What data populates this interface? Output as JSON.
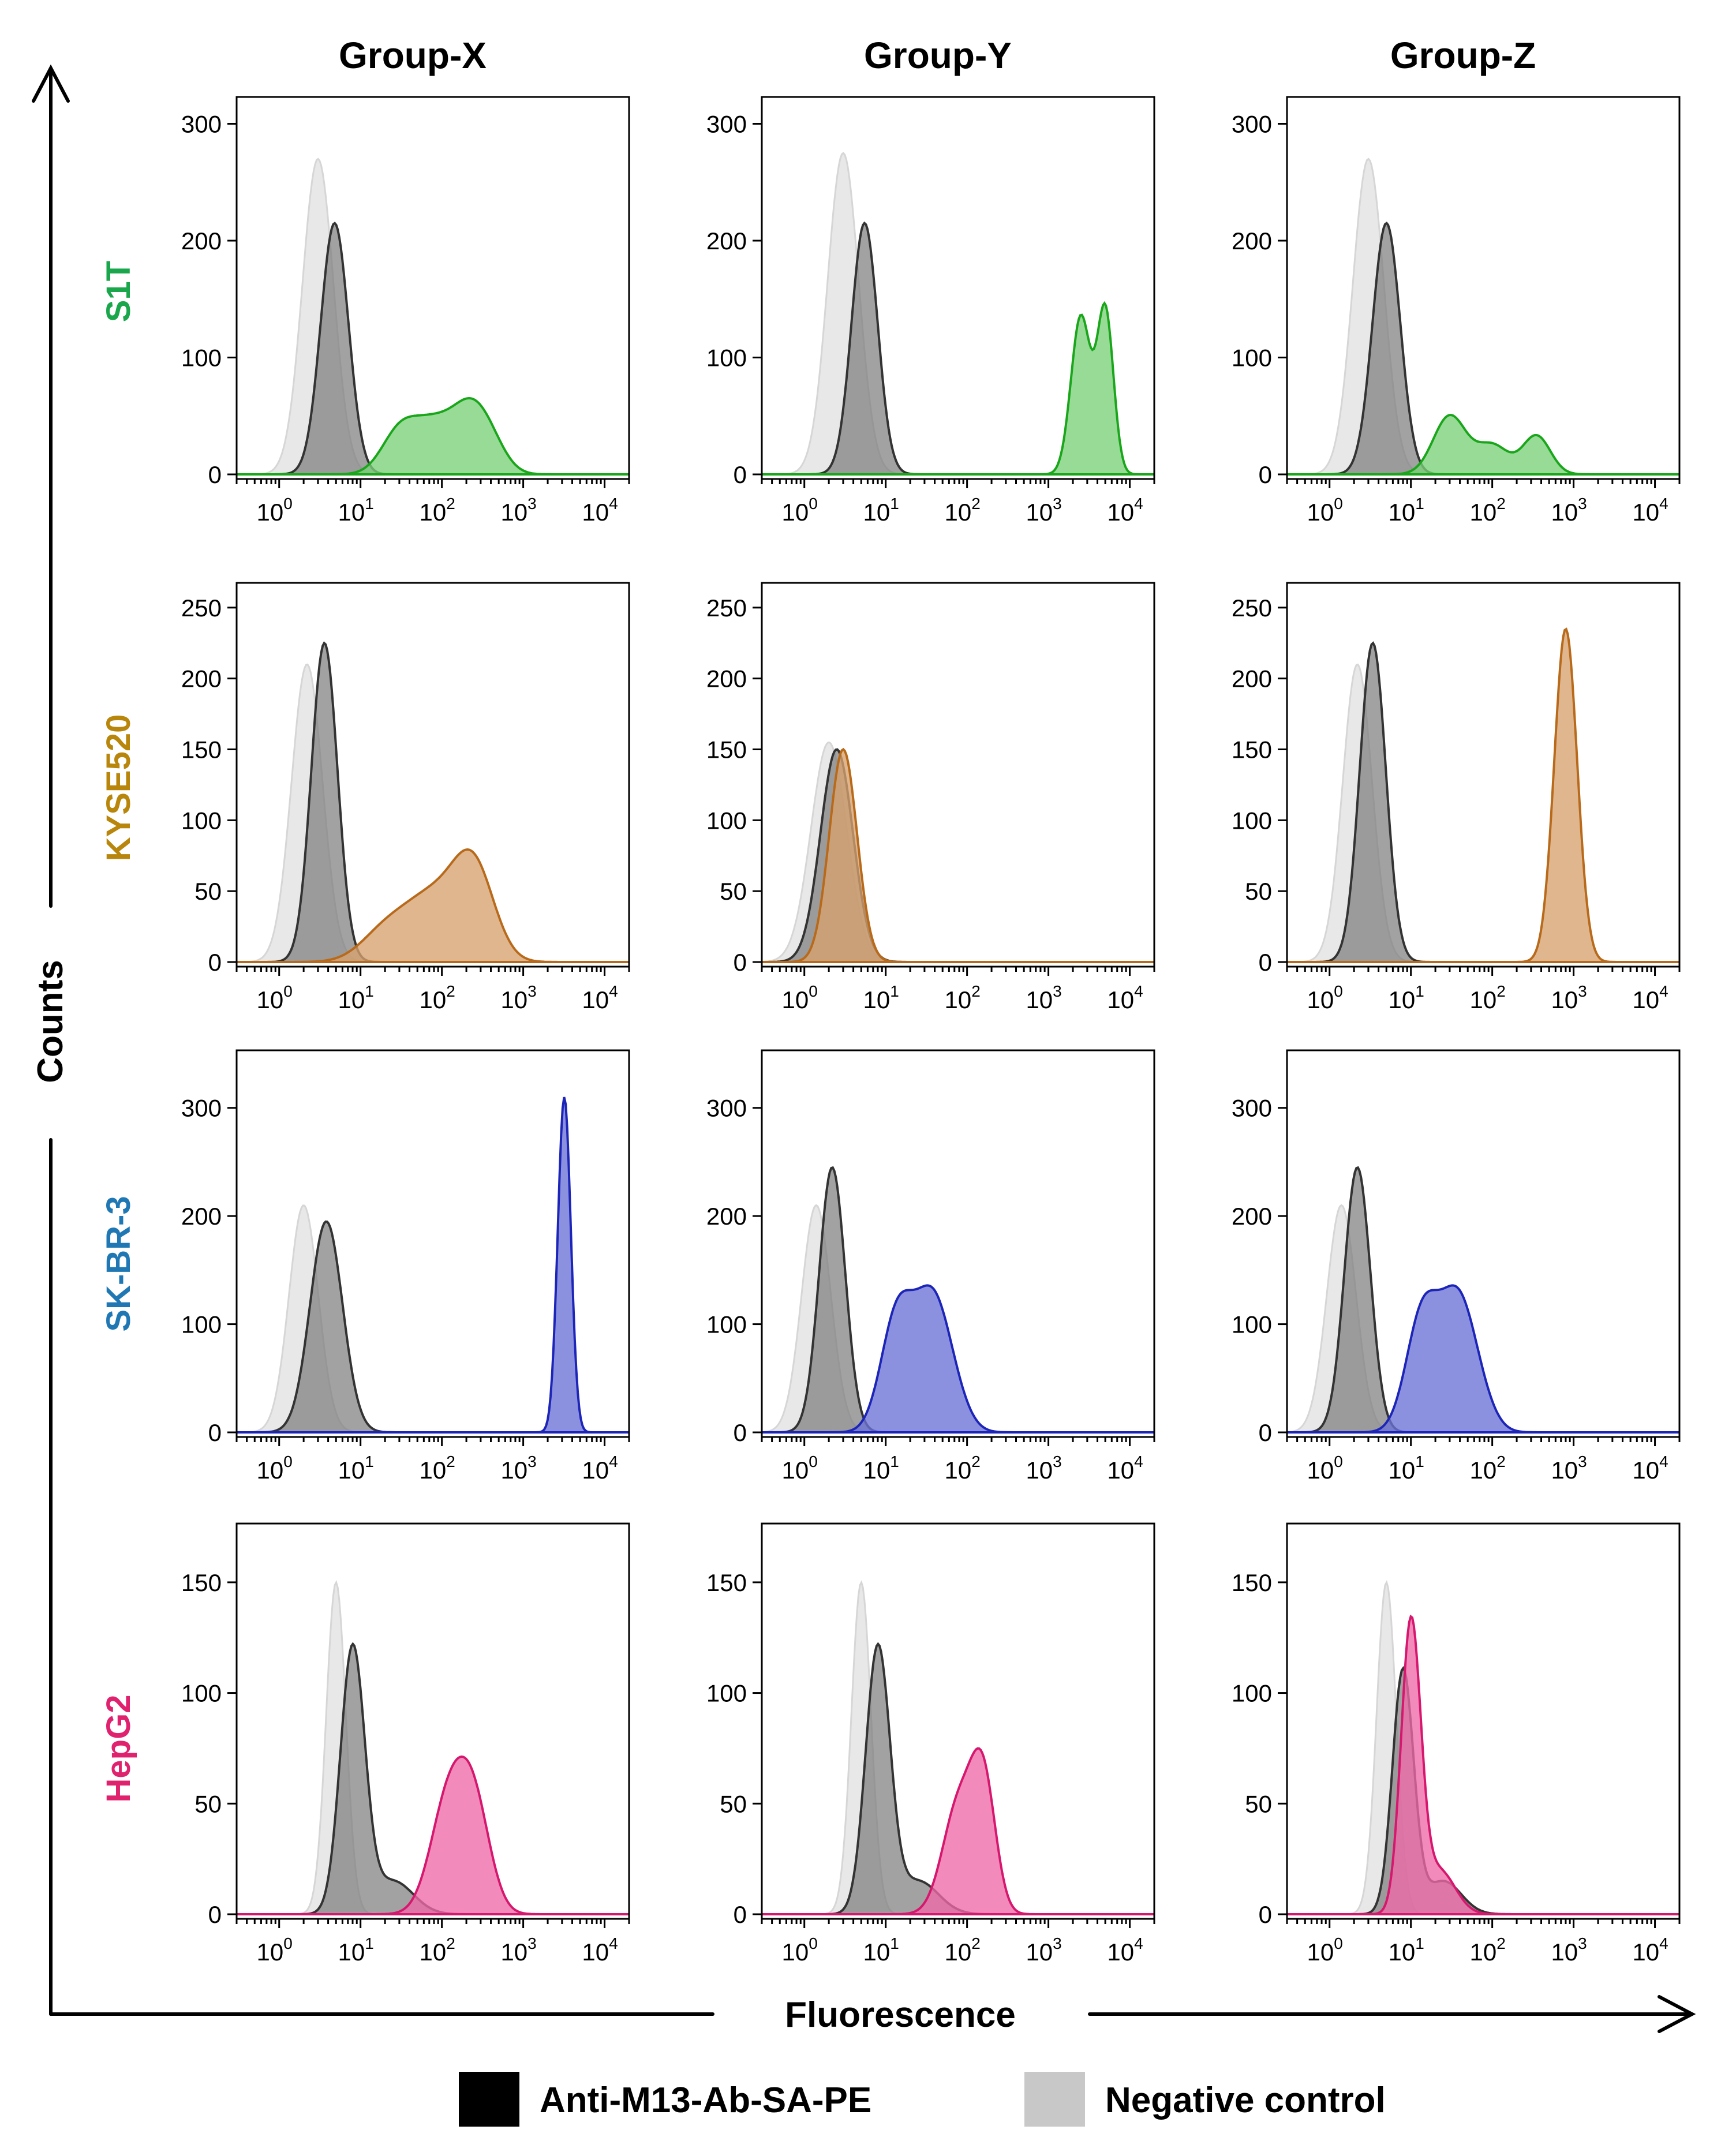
{
  "chart_data": {
    "type": "histogram-grid",
    "column_titles": [
      "Group-X",
      "Group-Y",
      "Group-Z"
    ],
    "row_labels": [
      {
        "label": "S1T",
        "color": "#1aa64a"
      },
      {
        "label": "KYSE520",
        "color": "#b8860b"
      },
      {
        "label": "SK-BR-3",
        "color": "#1f78b4"
      },
      {
        "label": "HepG2",
        "color": "#e0226e"
      }
    ],
    "sample_colors": [
      {
        "fill": "#7ad17a",
        "stroke": "#1aa61a"
      },
      {
        "fill": "#d7a26f",
        "stroke": "#b86a1a"
      },
      {
        "fill": "#6b72d6",
        "stroke": "#1c25b8"
      },
      {
        "fill": "#ee6aa8",
        "stroke": "#d6176e"
      }
    ],
    "xlabel": "Fluorescence",
    "ylabel": "Counts",
    "x_axis": {
      "scale": "log",
      "range": [
        0.3,
        20000
      ],
      "tick_base": "10",
      "tick_exponents": [
        "0",
        "1",
        "2",
        "3",
        "4"
      ]
    },
    "y_ranges": [
      [
        0,
        320
      ],
      [
        0,
        265
      ],
      [
        0,
        350
      ],
      [
        0,
        175
      ]
    ],
    "y_ticks": [
      [
        "0",
        "100",
        "200",
        "300"
      ],
      [
        "0",
        "50",
        "100",
        "150",
        "200",
        "250"
      ],
      [
        "0",
        "100",
        "200",
        "300"
      ],
      [
        "0",
        "50",
        "100",
        "150"
      ]
    ],
    "legend": {
      "position": "bottom",
      "items": [
        {
          "label": "Anti-M13-Ab-SA-PE",
          "color": "#000000"
        },
        {
          "label": "Negative control",
          "color": "#c8c8c8"
        }
      ]
    },
    "panels": [
      {
        "row": 0,
        "col": 0,
        "yrange": 0,
        "neg": [
          [
            3,
            270,
            0.19
          ]
        ],
        "anti": [
          [
            4.8,
            215,
            0.17
          ]
        ],
        "sample": [
          [
            30,
            35,
            0.22
          ],
          [
            80,
            40,
            0.25
          ],
          [
            220,
            48,
            0.22
          ],
          [
            400,
            20,
            0.2
          ]
        ]
      },
      {
        "row": 0,
        "col": 1,
        "yrange": 0,
        "neg": [
          [
            3,
            275,
            0.19
          ]
        ],
        "anti": [
          [
            5.5,
            215,
            0.16
          ]
        ],
        "sample": [
          [
            2500,
            135,
            0.12
          ],
          [
            5000,
            140,
            0.1
          ]
        ]
      },
      {
        "row": 0,
        "col": 2,
        "yrange": 0,
        "neg": [
          [
            3,
            270,
            0.19
          ]
        ],
        "anti": [
          [
            5,
            215,
            0.17
          ]
        ],
        "sample": [
          [
            30,
            50,
            0.2
          ],
          [
            100,
            25,
            0.2
          ],
          [
            350,
            33,
            0.17
          ]
        ]
      },
      {
        "row": 1,
        "col": 0,
        "yrange": 1,
        "neg": [
          [
            2.2,
            210,
            0.19
          ]
        ],
        "anti": [
          [
            3.6,
            225,
            0.16
          ]
        ],
        "sample": [
          [
            20,
            20,
            0.3
          ],
          [
            80,
            45,
            0.35
          ],
          [
            250,
            60,
            0.25
          ]
        ]
      },
      {
        "row": 1,
        "col": 1,
        "yrange": 1,
        "neg": [
          [
            2,
            155,
            0.22
          ]
        ],
        "anti": [
          [
            2.5,
            150,
            0.2
          ]
        ],
        "sample": [
          [
            3,
            150,
            0.17
          ]
        ]
      },
      {
        "row": 1,
        "col": 2,
        "yrange": 1,
        "neg": [
          [
            2.2,
            210,
            0.18
          ]
        ],
        "anti": [
          [
            3.4,
            225,
            0.16
          ]
        ],
        "sample": [
          [
            800,
            235,
            0.14
          ]
        ]
      },
      {
        "row": 2,
        "col": 0,
        "yrange": 2,
        "neg": [
          [
            2,
            210,
            0.18
          ]
        ],
        "anti": [
          [
            3.8,
            195,
            0.2
          ]
        ],
        "sample": [
          [
            3200,
            310,
            0.08
          ]
        ]
      },
      {
        "row": 2,
        "col": 1,
        "yrange": 2,
        "neg": [
          [
            1.4,
            210,
            0.18
          ]
        ],
        "anti": [
          [
            2.2,
            245,
            0.16
          ]
        ],
        "sample": [
          [
            14,
            110,
            0.2
          ],
          [
            35,
            100,
            0.2
          ],
          [
            60,
            40,
            0.2
          ]
        ]
      },
      {
        "row": 2,
        "col": 2,
        "yrange": 2,
        "neg": [
          [
            1.4,
            210,
            0.18
          ]
        ],
        "anti": [
          [
            2.2,
            245,
            0.16
          ]
        ],
        "sample": [
          [
            14,
            110,
            0.2
          ],
          [
            35,
            100,
            0.2
          ],
          [
            60,
            40,
            0.2
          ]
        ]
      },
      {
        "row": 3,
        "col": 0,
        "yrange": 3,
        "neg": [
          [
            5,
            150,
            0.12
          ]
        ],
        "anti": [
          [
            8,
            120,
            0.15
          ],
          [
            25,
            15,
            0.25
          ]
        ],
        "sample": [
          [
            120,
            50,
            0.22
          ],
          [
            250,
            45,
            0.2
          ]
        ]
      },
      {
        "row": 3,
        "col": 1,
        "yrange": 3,
        "neg": [
          [
            5,
            150,
            0.12
          ]
        ],
        "anti": [
          [
            8,
            120,
            0.15
          ],
          [
            25,
            15,
            0.25
          ]
        ],
        "sample": [
          [
            80,
            50,
            0.2
          ],
          [
            160,
            55,
            0.15
          ]
        ]
      },
      {
        "row": 3,
        "col": 2,
        "yrange": 3,
        "neg": [
          [
            5,
            150,
            0.12
          ]
        ],
        "anti": [
          [
            8,
            110,
            0.13
          ],
          [
            25,
            15,
            0.22
          ]
        ],
        "sample": [
          [
            10,
            130,
            0.12
          ],
          [
            22,
            20,
            0.2
          ]
        ]
      }
    ]
  }
}
